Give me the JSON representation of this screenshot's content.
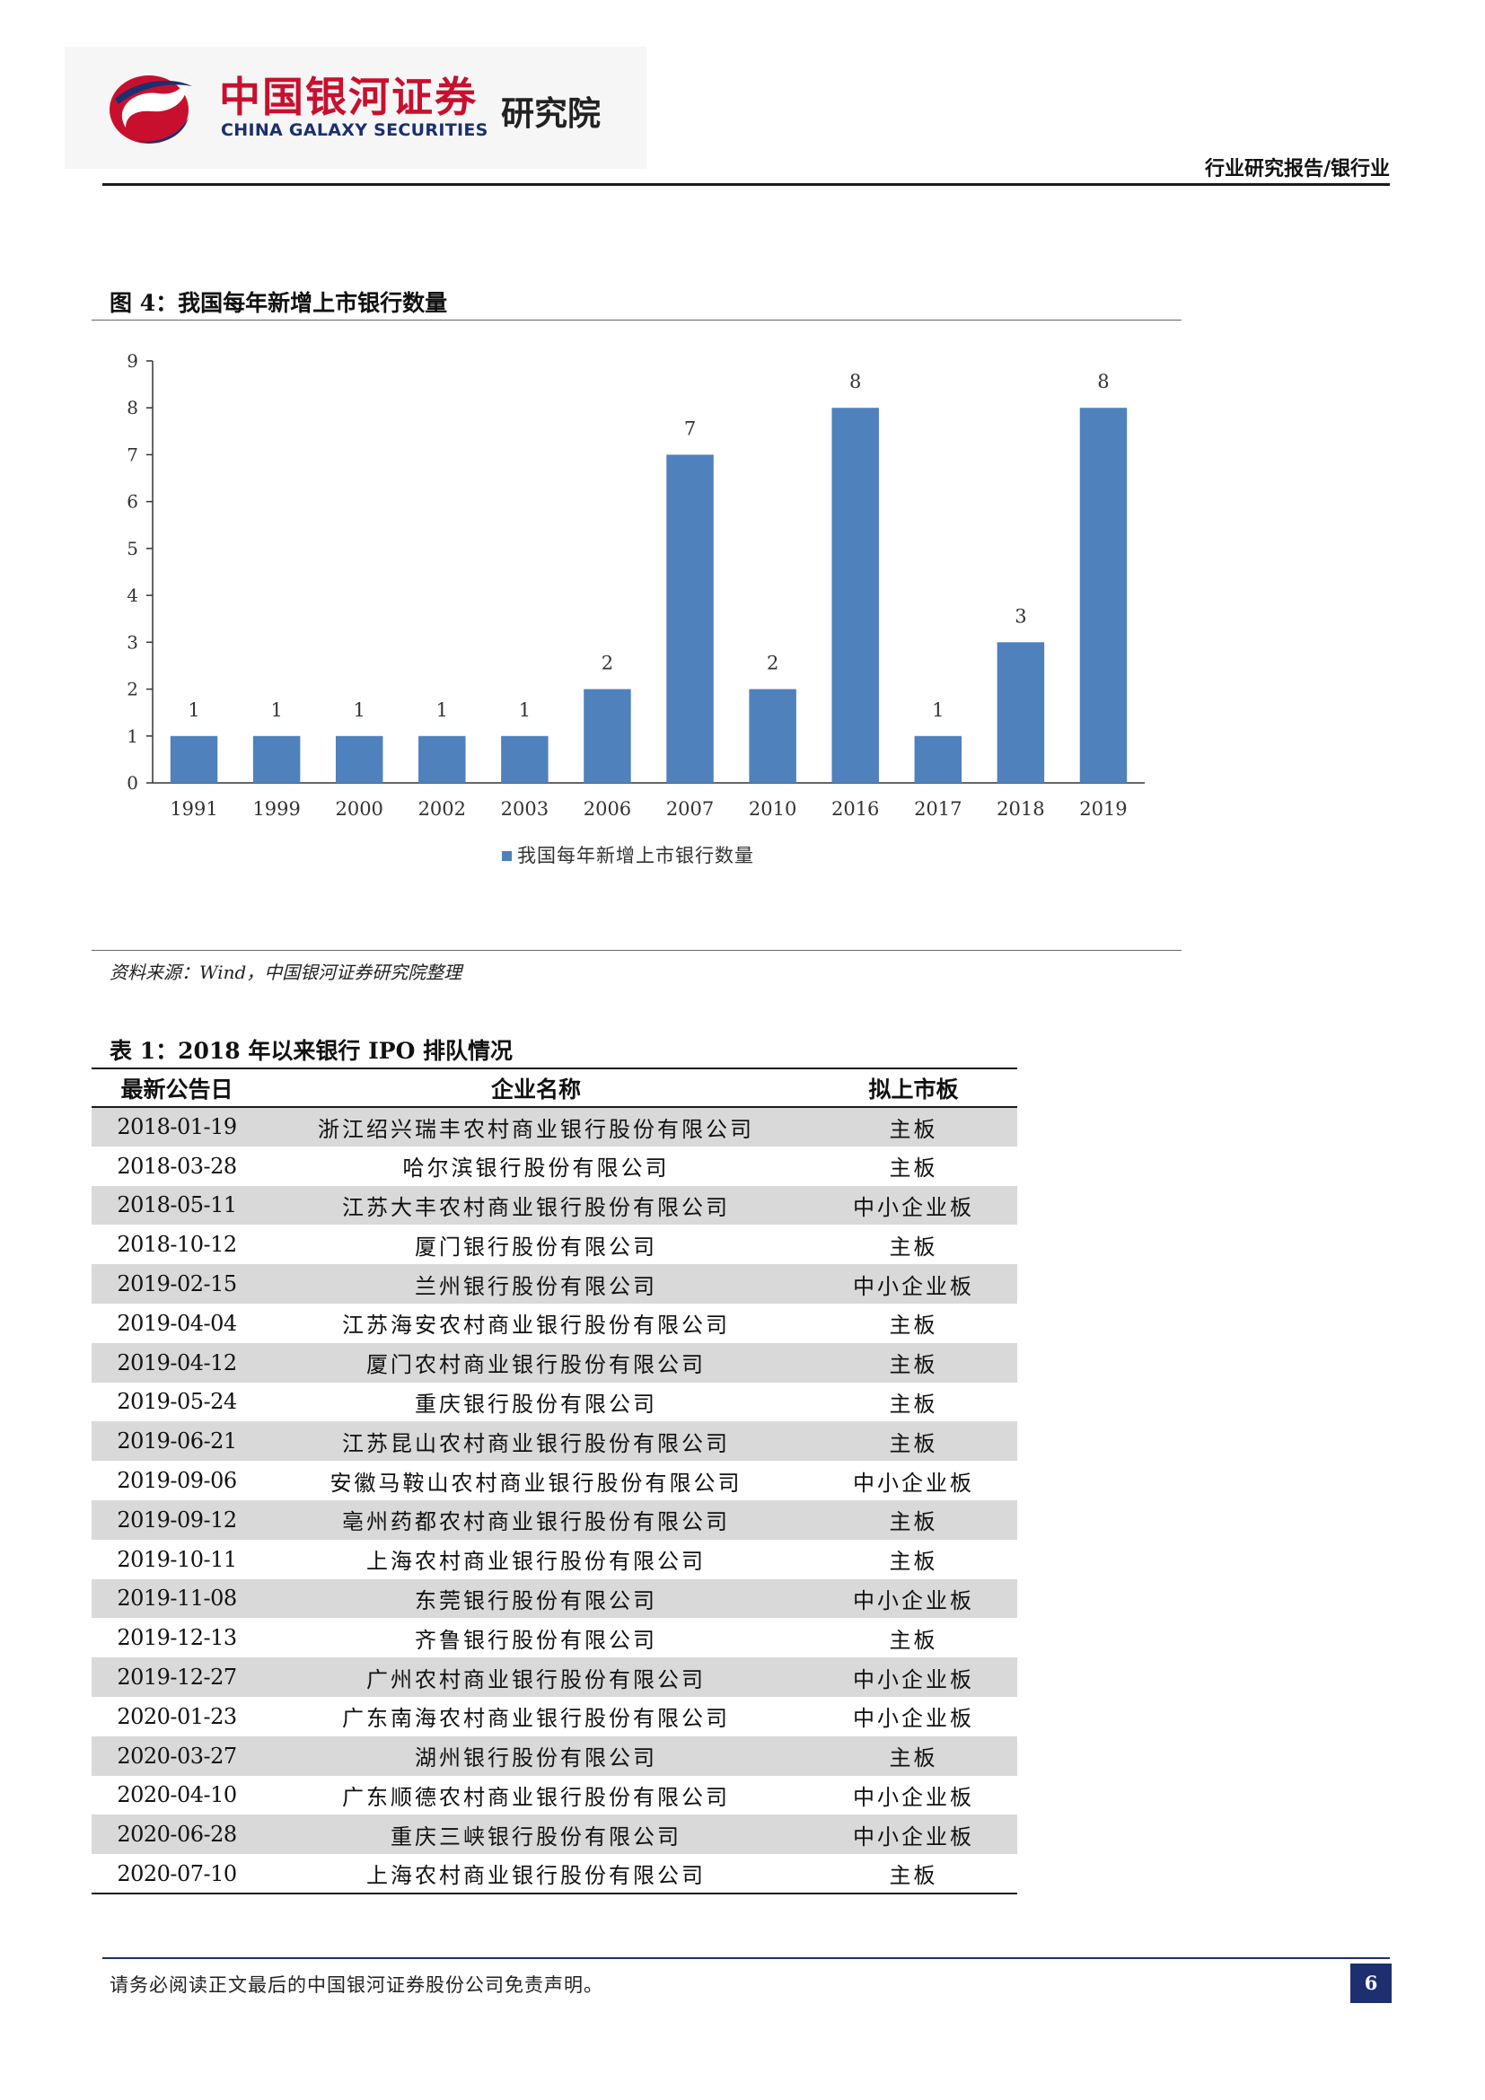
{
  "header": {
    "logo_cn": "中国银河证券",
    "logo_en": "CHINA GALAXY SECURITIES",
    "institute": "研究院",
    "report_type": "行业研究报告/银行业"
  },
  "figure": {
    "title": "图 4：我国每年新增上市银行数量",
    "source": "资料来源：Wind，中国银河证券研究院整理"
  },
  "chart_data": {
    "type": "bar",
    "categories": [
      "1991",
      "1999",
      "2000",
      "2002",
      "2003",
      "2006",
      "2007",
      "2010",
      "2016",
      "2017",
      "2018",
      "2019"
    ],
    "series": [
      {
        "name": "我国每年新增上市银行数量",
        "values": [
          1,
          1,
          1,
          1,
          1,
          2,
          7,
          2,
          8,
          1,
          3,
          8
        ]
      }
    ],
    "y_ticks": [
      "0",
      "1",
      "2",
      "3",
      "4",
      "5",
      "6",
      "7",
      "8",
      "9"
    ],
    "ylim": [
      0,
      9
    ],
    "grid": false,
    "legend_position": "bottom",
    "bar_color": "#4f81bd"
  },
  "table": {
    "title": "表 1：2018 年以来银行 IPO 排队情况",
    "headers": [
      "最新公告日",
      "企业名称",
      "拟上市板"
    ],
    "rows": [
      [
        "2018-01-19",
        "浙江绍兴瑞丰农村商业银行股份有限公司",
        "主板"
      ],
      [
        "2018-03-28",
        "哈尔滨银行股份有限公司",
        "主板"
      ],
      [
        "2018-05-11",
        "江苏大丰农村商业银行股份有限公司",
        "中小企业板"
      ],
      [
        "2018-10-12",
        "厦门银行股份有限公司",
        "主板"
      ],
      [
        "2019-02-15",
        "兰州银行股份有限公司",
        "中小企业板"
      ],
      [
        "2019-04-04",
        "江苏海安农村商业银行股份有限公司",
        "主板"
      ],
      [
        "2019-04-12",
        "厦门农村商业银行股份有限公司",
        "主板"
      ],
      [
        "2019-05-24",
        "重庆银行股份有限公司",
        "主板"
      ],
      [
        "2019-06-21",
        "江苏昆山农村商业银行股份有限公司",
        "主板"
      ],
      [
        "2019-09-06",
        "安徽马鞍山农村商业银行股份有限公司",
        "中小企业板"
      ],
      [
        "2019-09-12",
        "亳州药都农村商业银行股份有限公司",
        "主板"
      ],
      [
        "2019-10-11",
        "上海农村商业银行股份有限公司",
        "主板"
      ],
      [
        "2019-11-08",
        "东莞银行股份有限公司",
        "中小企业板"
      ],
      [
        "2019-12-13",
        "齐鲁银行股份有限公司",
        "主板"
      ],
      [
        "2019-12-27",
        "广州农村商业银行股份有限公司",
        "中小企业板"
      ],
      [
        "2020-01-23",
        "广东南海农村商业银行股份有限公司",
        "中小企业板"
      ],
      [
        "2020-03-27",
        "湖州银行股份有限公司",
        "主板"
      ],
      [
        "2020-04-10",
        "广东顺德农村商业银行股份有限公司",
        "中小企业板"
      ],
      [
        "2020-06-28",
        "重庆三峡银行股份有限公司",
        "中小企业板"
      ],
      [
        "2020-07-10",
        "上海农村商业银行股份有限公司",
        "主板"
      ]
    ]
  },
  "footer": {
    "disclaimer": "请务必阅读正文最后的中国银河证券股份公司免责声明。",
    "page_number": "6"
  }
}
